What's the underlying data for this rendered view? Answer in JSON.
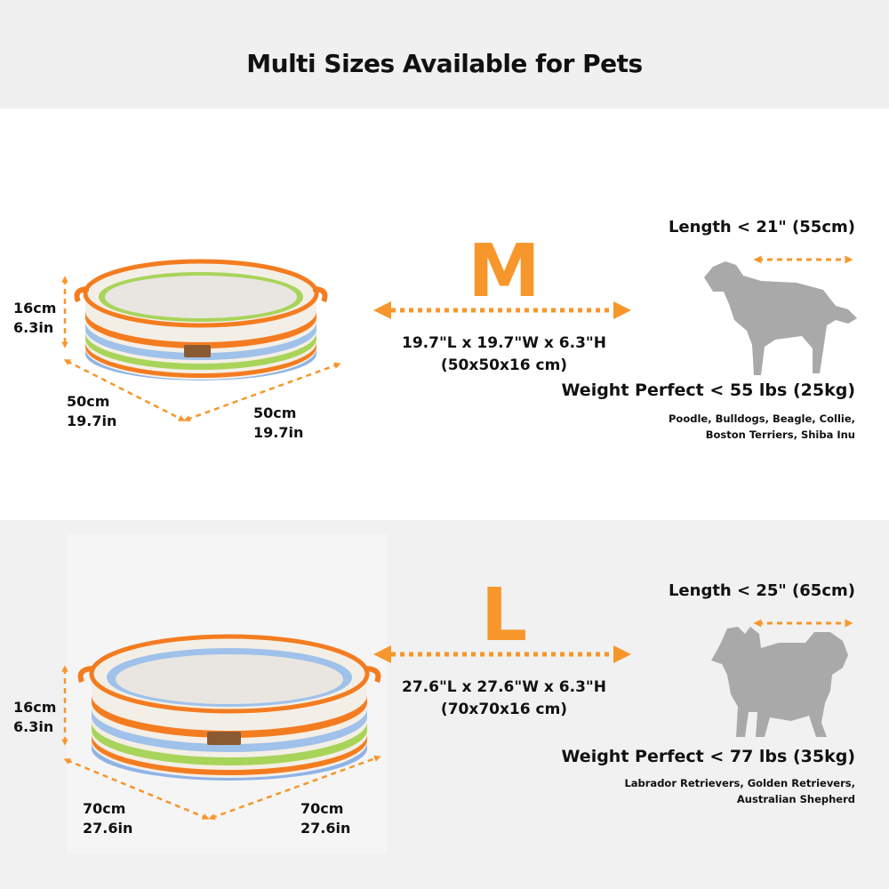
{
  "title": "Multi Sizes Available for Pets",
  "accent_color": "#f7962b",
  "sizes": [
    {
      "letter": "M",
      "dims_in": "19.7\"L x 19.7\"W x 6.3\"H",
      "dims_cm": "(50x50x16 cm)",
      "height_cm": "16cm",
      "height_in": "6.3in",
      "length_cm": "50cm",
      "length_in": "19.7in",
      "width_cm": "50cm",
      "width_in": "19.7in",
      "pet_length": "Length < 21\" (55cm)",
      "pet_weight": "Weight Perfect < 55 lbs (25kg)",
      "breeds_line1": "Poodle, Bulldogs, Beagle, Collie,",
      "breeds_line2": "Boston Terriers, Shiba Inu",
      "dog_icon": "collie-dog-silhouette"
    },
    {
      "letter": "L",
      "dims_in": "27.6\"L x 27.6\"W x 6.3\"H",
      "dims_cm": "(70x70x16 cm)",
      "height_cm": "16cm",
      "height_in": "6.3in",
      "length_cm": "70cm",
      "length_in": "27.6in",
      "width_cm": "70cm",
      "width_in": "27.6in",
      "pet_length": "Length < 25\" (65cm)",
      "pet_weight": "Weight Perfect < 77 lbs (35kg)",
      "breeds_line1": "Labrador Retrievers, Golden Retrievers,",
      "breeds_line2": "Australian Shepherd",
      "dog_icon": "fluffy-dog-silhouette"
    }
  ]
}
